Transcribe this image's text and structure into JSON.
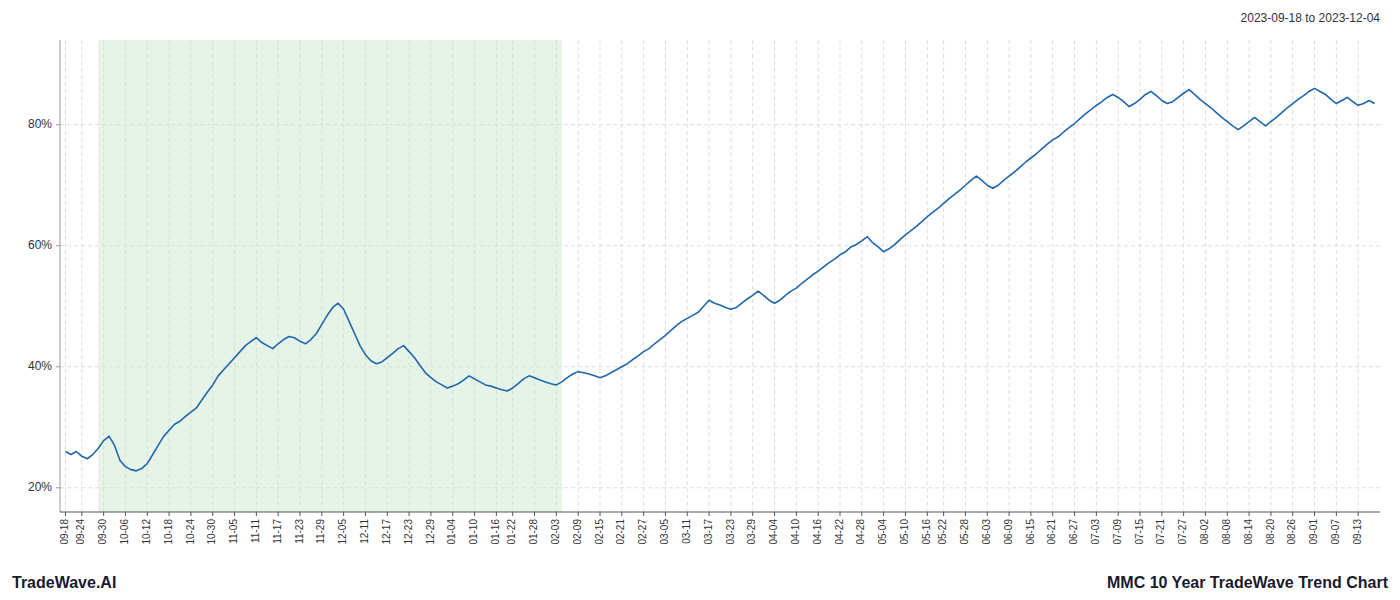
{
  "chart_data": {
    "type": "line",
    "title": "MMC 10 Year TradeWave Trend Chart",
    "subtitle": "2023-09-18 to 2023-12-04",
    "annotations": [
      "TradeWave.AI"
    ],
    "color": "#2166ac",
    "grid": true,
    "ylim": [
      16,
      94
    ],
    "yticks": [
      {
        "value": 20,
        "label": "20%"
      },
      {
        "value": 40,
        "label": "40%"
      },
      {
        "value": 60,
        "label": "60%"
      },
      {
        "value": 80,
        "label": "80%"
      }
    ],
    "shade": {
      "from": 6,
      "to": 91,
      "color": "#c8e6c9"
    },
    "categories": [
      "09-18",
      null,
      null,
      "09-24",
      null,
      null,
      null,
      "09-30",
      null,
      null,
      null,
      "10-06",
      null,
      null,
      null,
      "10-12",
      null,
      null,
      null,
      "10-18",
      null,
      null,
      null,
      "10-24",
      null,
      null,
      null,
      "10-30",
      null,
      null,
      null,
      "11-05",
      null,
      null,
      null,
      "11-11",
      null,
      null,
      null,
      "11-17",
      null,
      null,
      null,
      "11-23",
      null,
      null,
      null,
      "11-29",
      null,
      null,
      null,
      "12-05",
      null,
      null,
      null,
      "12-11",
      null,
      null,
      null,
      "12-17",
      null,
      null,
      null,
      "12-23",
      null,
      null,
      null,
      "12-29",
      null,
      null,
      null,
      "01-04",
      null,
      null,
      null,
      "01-10",
      null,
      null,
      null,
      "01-16",
      null,
      null,
      "01-22",
      null,
      null,
      null,
      "01-28",
      null,
      null,
      null,
      "02-03",
      null,
      null,
      null,
      "02-09",
      null,
      null,
      null,
      "02-15",
      null,
      null,
      null,
      "02-21",
      null,
      null,
      null,
      "02-27",
      null,
      null,
      null,
      "03-05",
      null,
      null,
      null,
      "03-11",
      null,
      null,
      null,
      "03-17",
      null,
      null,
      null,
      "03-23",
      null,
      null,
      null,
      "03-29",
      null,
      null,
      null,
      "04-04",
      null,
      null,
      null,
      "04-10",
      null,
      null,
      null,
      "04-16",
      null,
      null,
      null,
      "04-22",
      null,
      null,
      null,
      "04-28",
      null,
      null,
      null,
      "05-04",
      null,
      null,
      null,
      "05-10",
      null,
      null,
      null,
      "05-16",
      null,
      null,
      "05-22",
      null,
      null,
      null,
      "05-28",
      null,
      null,
      null,
      "06-03",
      null,
      null,
      null,
      "06-09",
      null,
      null,
      null,
      "06-15",
      null,
      null,
      null,
      "06-21",
      null,
      null,
      null,
      "06-27",
      null,
      null,
      null,
      "07-03",
      null,
      null,
      null,
      "07-09",
      null,
      null,
      null,
      "07-15",
      null,
      null,
      null,
      "07-21",
      null,
      null,
      null,
      "07-27",
      null,
      null,
      null,
      "08-02",
      null,
      null,
      null,
      "08-08",
      null,
      null,
      null,
      "08-14",
      null,
      null,
      null,
      "08-20",
      null,
      null,
      null,
      "08-26",
      null,
      null,
      null,
      "09-01",
      null,
      null,
      null,
      "09-07",
      null,
      null,
      null,
      "09-13",
      null,
      null,
      null
    ],
    "values": [
      26.0,
      25.5,
      26.0,
      25.2,
      24.8,
      25.5,
      26.5,
      27.8,
      28.5,
      27.0,
      24.5,
      23.5,
      23.0,
      22.8,
      23.2,
      24.0,
      25.5,
      27.0,
      28.5,
      29.5,
      30.5,
      31.0,
      31.8,
      32.5,
      33.2,
      34.5,
      35.8,
      37.0,
      38.5,
      39.5,
      40.5,
      41.5,
      42.5,
      43.5,
      44.2,
      44.8,
      44.0,
      43.5,
      43.0,
      43.8,
      44.5,
      45.0,
      44.8,
      44.2,
      43.8,
      44.5,
      45.5,
      47.0,
      48.5,
      49.8,
      50.5,
      49.5,
      47.5,
      45.5,
      43.5,
      42.0,
      41.0,
      40.5,
      40.8,
      41.5,
      42.2,
      43.0,
      43.5,
      42.5,
      41.5,
      40.2,
      39.0,
      38.2,
      37.5,
      37.0,
      36.5,
      36.8,
      37.2,
      37.8,
      38.5,
      38.0,
      37.5,
      37.0,
      36.8,
      36.5,
      36.2,
      36.0,
      36.5,
      37.2,
      38.0,
      38.5,
      38.2,
      37.8,
      37.5,
      37.2,
      37.0,
      37.5,
      38.2,
      38.8,
      39.2,
      39.0,
      38.8,
      38.5,
      38.2,
      38.5,
      39.0,
      39.5,
      40.0,
      40.5,
      41.2,
      41.8,
      42.5,
      43.0,
      43.8,
      44.5,
      45.2,
      46.0,
      46.8,
      47.5,
      48.0,
      48.5,
      49.0,
      50.0,
      51.0,
      50.5,
      50.2,
      49.8,
      49.5,
      49.8,
      50.5,
      51.2,
      51.8,
      52.5,
      51.8,
      51.0,
      50.5,
      51.0,
      51.8,
      52.5,
      53.0,
      53.8,
      54.5,
      55.2,
      55.8,
      56.5,
      57.2,
      57.8,
      58.5,
      59.0,
      59.8,
      60.2,
      60.8,
      61.5,
      60.5,
      59.8,
      59.0,
      59.5,
      60.2,
      61.0,
      61.8,
      62.5,
      63.2,
      64.0,
      64.8,
      65.5,
      66.2,
      67.0,
      67.8,
      68.5,
      69.2,
      70.0,
      70.8,
      71.5,
      70.8,
      70.0,
      69.5,
      70.0,
      70.8,
      71.5,
      72.2,
      73.0,
      73.8,
      74.5,
      75.2,
      76.0,
      76.8,
      77.5,
      78.0,
      78.8,
      79.5,
      80.2,
      81.0,
      81.8,
      82.5,
      83.2,
      83.8,
      84.5,
      85.0,
      84.5,
      83.8,
      83.0,
      83.5,
      84.2,
      85.0,
      85.5,
      84.8,
      84.0,
      83.5,
      83.8,
      84.5,
      85.2,
      85.8,
      85.0,
      84.2,
      83.5,
      82.8,
      82.0,
      81.2,
      80.5,
      79.8,
      79.2,
      79.8,
      80.5,
      81.2,
      80.5,
      79.8,
      80.5,
      81.2,
      82.0,
      82.8,
      83.5,
      84.2,
      84.8,
      85.5,
      86.0,
      85.5,
      85.0,
      84.2,
      83.5,
      84.0,
      84.5,
      83.8,
      83.2,
      83.5,
      84.0,
      83.5
    ]
  }
}
